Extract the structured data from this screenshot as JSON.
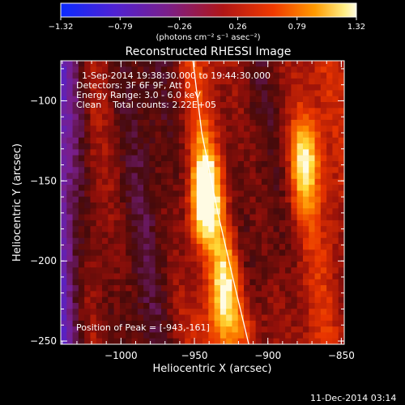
{
  "chart_data": {
    "type": "heatmap",
    "title": "Reconstructed RHESSI Image",
    "xlabel": "Heliocentric X (arcsec)",
    "ylabel": "Heliocentric Y (arcsec)",
    "xlim": [
      -1041,
      -848
    ],
    "ylim": [
      -252,
      -75
    ],
    "x_ticks": [
      -1000,
      -950,
      -900,
      -850
    ],
    "x_tick_labels": [
      "−1000",
      "−950",
      "−900",
      "−850"
    ],
    "y_ticks": [
      -100,
      -150,
      -200,
      -250
    ],
    "y_tick_labels": [
      "−100",
      "−150",
      "−200",
      "−250"
    ],
    "colorbar": {
      "min": -1.32,
      "max": 1.32,
      "ticks": [
        -1.32,
        -0.79,
        -0.26,
        0.26,
        0.79,
        1.32
      ],
      "tick_labels": [
        "−1.32",
        "−0.79",
        "−0.26",
        "0.26",
        "0.79",
        "1.32"
      ],
      "units": "(photons cm⁻² s⁻¹ asec⁻²)"
    },
    "annotations": [
      "1-Sep-2014 19:38:30.000 to 19:44:30.000",
      "Detectors: 3F 6F 9F, Att 0",
      "Energy Range: 3.0 - 6.0 keV",
      "Clean    Total counts: 2.22E+05"
    ],
    "peak": {
      "label": "Position of Peak = [-943,-161]",
      "x": -943,
      "y": -161
    },
    "sources": [
      {
        "x": -943,
        "y": -161,
        "intensity": 1.32
      },
      {
        "x": -875,
        "y": -140,
        "intensity": 0.95
      },
      {
        "x": -930,
        "y": -215,
        "intensity": 0.75
      }
    ],
    "limb_curve": [
      {
        "x": -951,
        "y": -75
      },
      {
        "x": -945,
        "y": -120
      },
      {
        "x": -934,
        "y": -170
      },
      {
        "x": -924,
        "y": -210
      },
      {
        "x": -913,
        "y": -252
      }
    ]
  },
  "footer": {
    "timestamp": "11-Dec-2014 03:14"
  }
}
